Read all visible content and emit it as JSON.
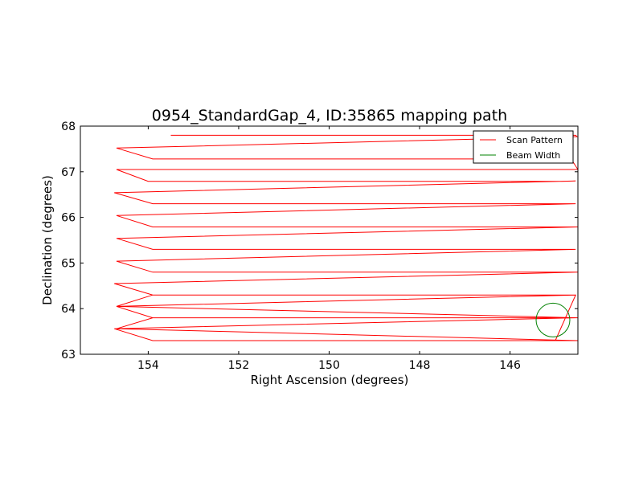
{
  "chart_data": {
    "type": "line",
    "title": "0954_StandardGap_4, ID:35865 mapping path",
    "xlabel": "Right Ascension (degrees)",
    "ylabel": "Declination (degrees)",
    "xlim": [
      155.5,
      144.5
    ],
    "ylim": [
      63,
      68
    ],
    "x_inverted": true,
    "xticks": [
      154,
      152,
      150,
      148,
      146
    ],
    "yticks": [
      63,
      64,
      65,
      66,
      67,
      68
    ],
    "grid": false,
    "legend_position": "upper right",
    "series": [
      {
        "name": "Scan Pattern",
        "color": "#ff0000",
        "x": [
          153.5,
          144.55,
          144.52,
          154.7,
          153.9,
          144.65,
          144.5,
          154.7,
          154.0,
          144.85,
          144.55,
          154.75,
          153.9,
          144.95,
          144.55,
          154.7,
          153.9,
          144.95,
          144.5,
          154.7,
          153.9,
          145.0,
          144.55,
          154.7,
          153.9,
          145.05,
          144.5,
          154.75,
          153.9,
          145.1,
          144.55,
          154.7,
          153.9,
          145.15,
          144.55,
          154.75,
          153.9,
          145.2,
          144.5,
          154.7,
          153.9,
          145.2,
          144.5,
          154.7,
          153.9,
          145.3,
          144.55,
          145.0
        ],
        "y": [
          67.8,
          67.8,
          67.77,
          67.52,
          67.28,
          67.28,
          67.05,
          67.05,
          66.79,
          66.79,
          66.8,
          66.54,
          66.3,
          66.3,
          66.3,
          66.04,
          65.79,
          65.79,
          65.79,
          65.54,
          65.3,
          65.3,
          65.3,
          65.04,
          64.8,
          64.8,
          64.8,
          64.55,
          64.3,
          64.3,
          64.3,
          64.05,
          63.8,
          63.8,
          63.8,
          63.56,
          63.3,
          63.3,
          63.3,
          63.56,
          63.8,
          63.8,
          63.8,
          64.05,
          64.3,
          64.3,
          64.3,
          63.3
        ]
      },
      {
        "name": "Beam Width",
        "color": "#008000",
        "shape": "circle",
        "center": [
          145.05,
          63.75
        ],
        "radius_deg": 0.37
      }
    ]
  }
}
